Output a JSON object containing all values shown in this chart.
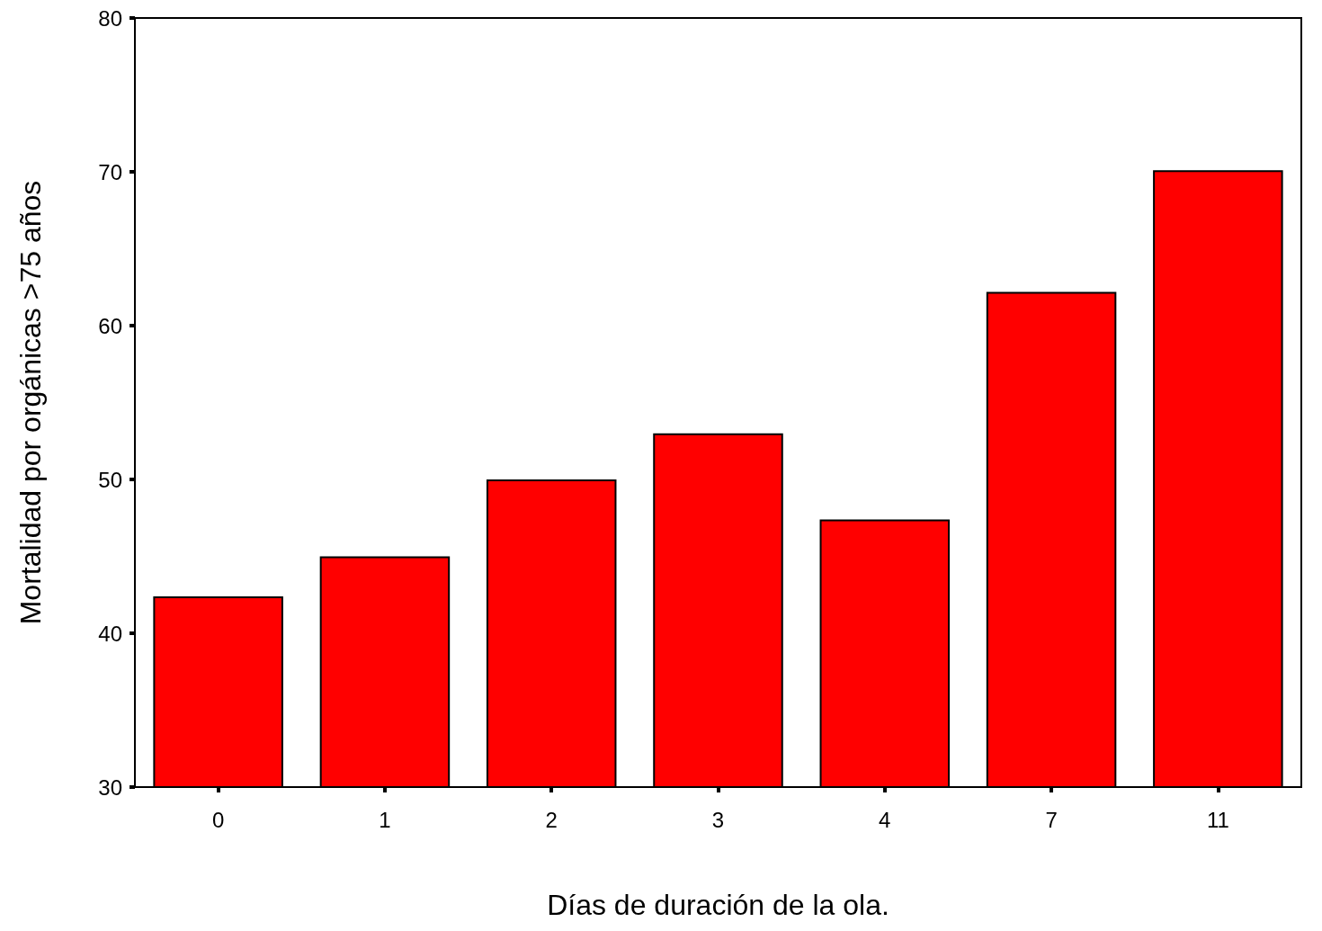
{
  "chart_data": {
    "type": "bar",
    "xlabel": "Días de duración de la ola.",
    "ylabel": "Mortalidad por orgánicas >75 años",
    "categories": [
      "0",
      "1",
      "2",
      "3",
      "4",
      "7",
      "11"
    ],
    "values": [
      42.4,
      45.0,
      50.0,
      53.0,
      47.4,
      62.2,
      70.1
    ],
    "color": "#ff0000",
    "ylim": [
      30,
      80
    ],
    "yticks": [
      30,
      40,
      50,
      60,
      70,
      80
    ],
    "grid": false
  }
}
